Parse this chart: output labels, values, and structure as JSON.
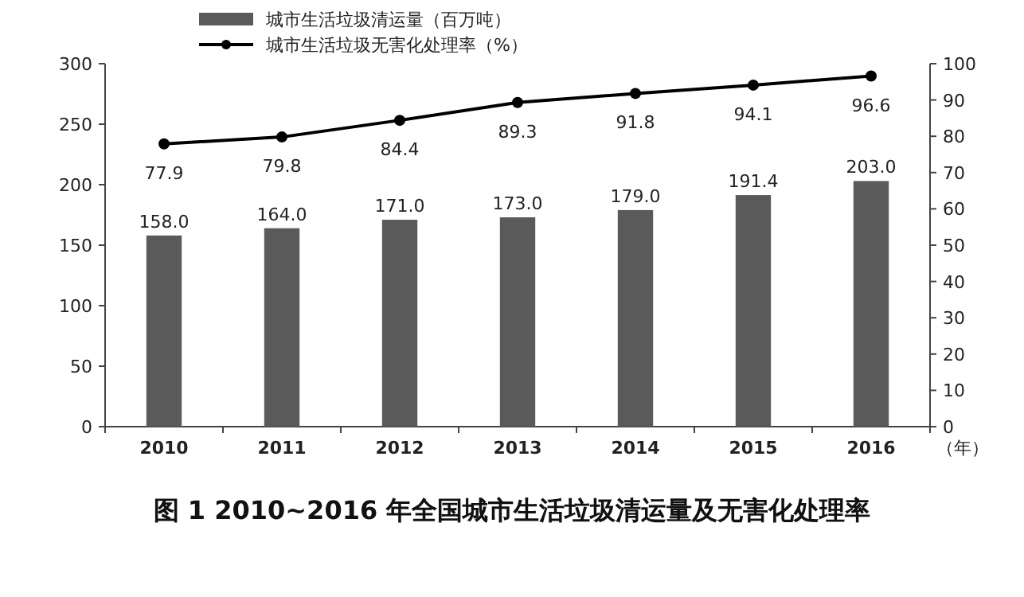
{
  "chart_data": {
    "type": "bar",
    "title": "图 1 2010~2016 年全国城市生活垃圾清运量及无害化处理率",
    "xlabel": "（年）",
    "categories": [
      "2010",
      "2011",
      "2012",
      "2013",
      "2014",
      "2015",
      "2016"
    ],
    "series": [
      {
        "name": "城市生活垃圾清运量（百万吨）",
        "color": "#5a5a5a",
        "values": [
          158,
          164,
          171,
          173,
          179,
          191.4,
          203
        ],
        "value_labels": [
          "158.0",
          "164.0",
          "171.0",
          "173.0",
          "179.0",
          "191.4",
          "203.0"
        ]
      },
      {
        "name": "城市生活垃圾无害化处理率（%）",
        "type": "line",
        "axis": "y2",
        "color": "#000000",
        "marker": "circle",
        "values": [
          77.9,
          79.8,
          84.4,
          89.3,
          91.8,
          94.1,
          96.6
        ],
        "value_labels": [
          "77.9",
          "79.8",
          "84.4",
          "89.3",
          "91.8",
          "94.1",
          "96.6"
        ]
      }
    ],
    "ylim": [
      0,
      300
    ],
    "yticks": [
      0,
      50,
      100,
      150,
      200,
      250,
      300
    ],
    "y2lim": [
      0,
      100
    ],
    "y2ticks": [
      0,
      10,
      20,
      30,
      40,
      50,
      60,
      70,
      80,
      90,
      100
    ],
    "legend": "top",
    "grid": false
  }
}
